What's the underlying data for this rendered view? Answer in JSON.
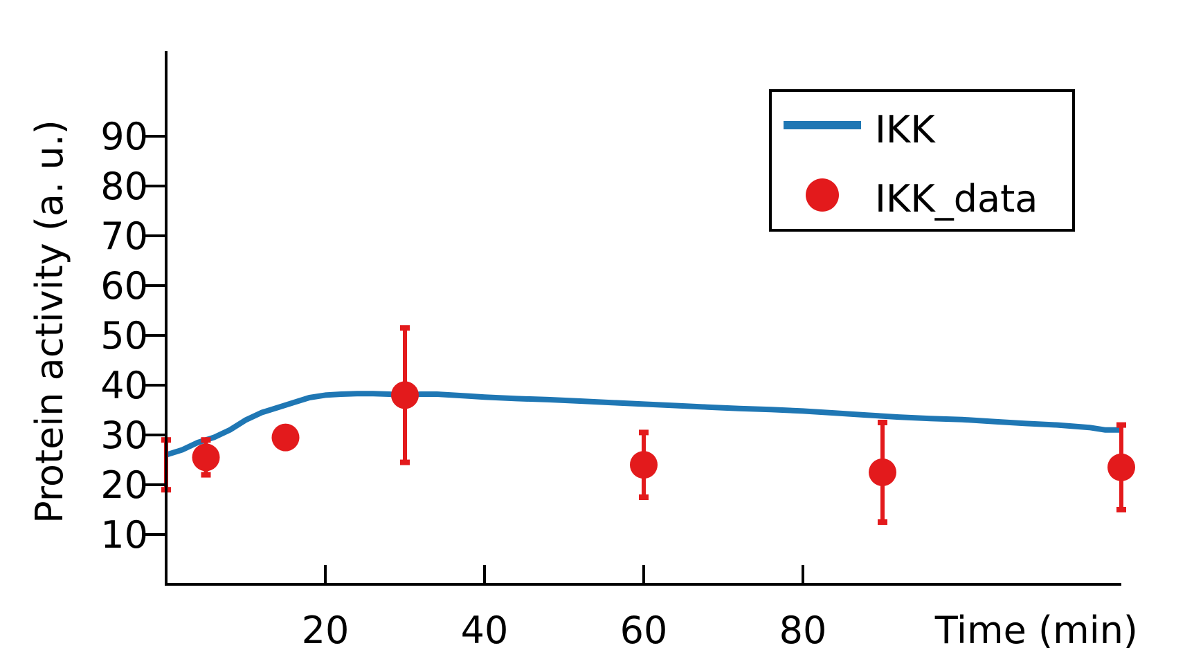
{
  "chart_data": {
    "type": "line",
    "xlabel": "Time (min)",
    "ylabel": "Protein activity (a. u.)",
    "xlim": [
      0,
      120
    ],
    "ylim": [
      0,
      100
    ],
    "xticks": [
      20,
      40,
      60,
      80
    ],
    "yticks": [
      10,
      20,
      30,
      40,
      50,
      60,
      70,
      80,
      90
    ],
    "grid": false,
    "legend_position": "top-right",
    "series": [
      {
        "name": "IKK",
        "kind": "line",
        "color": "#1f77b4",
        "x": [
          0,
          2,
          4,
          6,
          8,
          10,
          12,
          14,
          16,
          18,
          20,
          22,
          24,
          26,
          28,
          30,
          32,
          34,
          36,
          38,
          40,
          44,
          48,
          52,
          56,
          60,
          64,
          68,
          72,
          76,
          80,
          84,
          88,
          92,
          96,
          100,
          104,
          108,
          112,
          116,
          118,
          120
        ],
        "y": [
          26,
          27,
          28.5,
          29.5,
          31,
          33,
          34.5,
          35.5,
          36.5,
          37.5,
          38,
          38.2,
          38.3,
          38.3,
          38.2,
          38,
          38.2,
          38.2,
          38,
          37.8,
          37.6,
          37.3,
          37.1,
          36.8,
          36.5,
          36.2,
          35.9,
          35.6,
          35.3,
          35.1,
          34.8,
          34.4,
          34,
          33.6,
          33.3,
          33.1,
          32.7,
          32.3,
          32,
          31.5,
          31,
          31
        ]
      },
      {
        "name": "IKK_data",
        "kind": "scatter",
        "color": "#e31a1c",
        "x": [
          0,
          5,
          15,
          30,
          60,
          90,
          120
        ],
        "y": [
          24,
          25.5,
          29.5,
          38,
          24,
          22.5,
          23.5
        ],
        "err": [
          5,
          3.5,
          0,
          13.5,
          6.5,
          10,
          8.5
        ]
      }
    ]
  }
}
